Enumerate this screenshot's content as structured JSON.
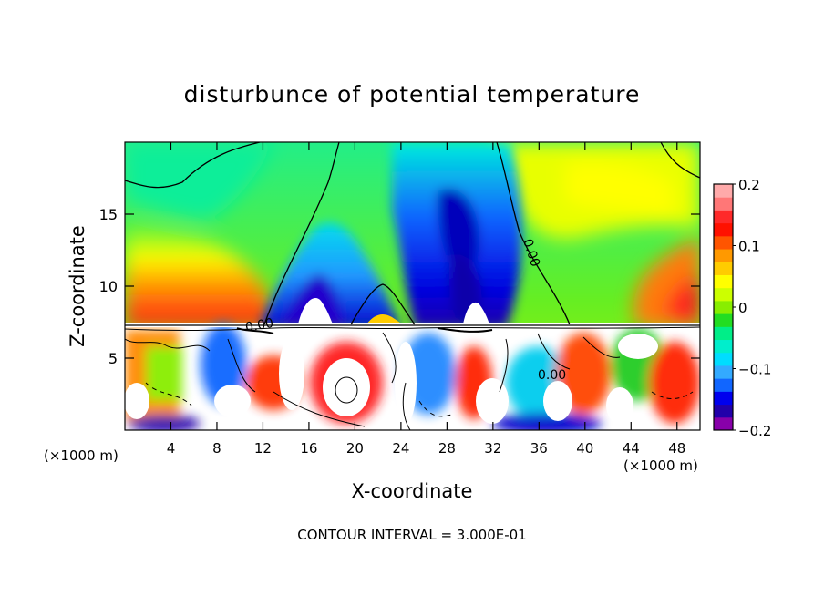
{
  "chart_data": {
    "type": "heatmap",
    "title": "disturbunce of potential temperature",
    "xlabel": "X-coordinate",
    "ylabel": "Z-coordinate",
    "x_unit": "(×1000 m)",
    "xlim": [
      0,
      50
    ],
    "ylim": [
      0,
      20
    ],
    "x_ticks": [
      4,
      8,
      12,
      16,
      20,
      24,
      28,
      32,
      36,
      40,
      44,
      48
    ],
    "y_ticks": [
      5,
      10,
      15
    ],
    "colorbar": {
      "min": -0.2,
      "max": 0.2,
      "tick_values": [
        0.2,
        0.1,
        0,
        -0.1,
        -0.2
      ],
      "tick_labels": [
        "0.2",
        "0.1",
        "0",
        "−0.1",
        "−0.2"
      ],
      "colors": [
        "#8800aa",
        "#2200aa",
        "#0000ee",
        "#1166ff",
        "#33aaff",
        "#00ddff",
        "#00eecc",
        "#00ee88",
        "#22dd22",
        "#88ee00",
        "#ccff00",
        "#ffff00",
        "#ffcc00",
        "#ff9900",
        "#ff5500",
        "#ff1100",
        "#ff2a2a",
        "#ff7777",
        "#ffaaaa"
      ]
    },
    "contour_labels": [
      "0.00",
      "0.00",
      "0.00"
    ],
    "footer": "CONTOUR INTERVAL = 3.000E-01"
  }
}
